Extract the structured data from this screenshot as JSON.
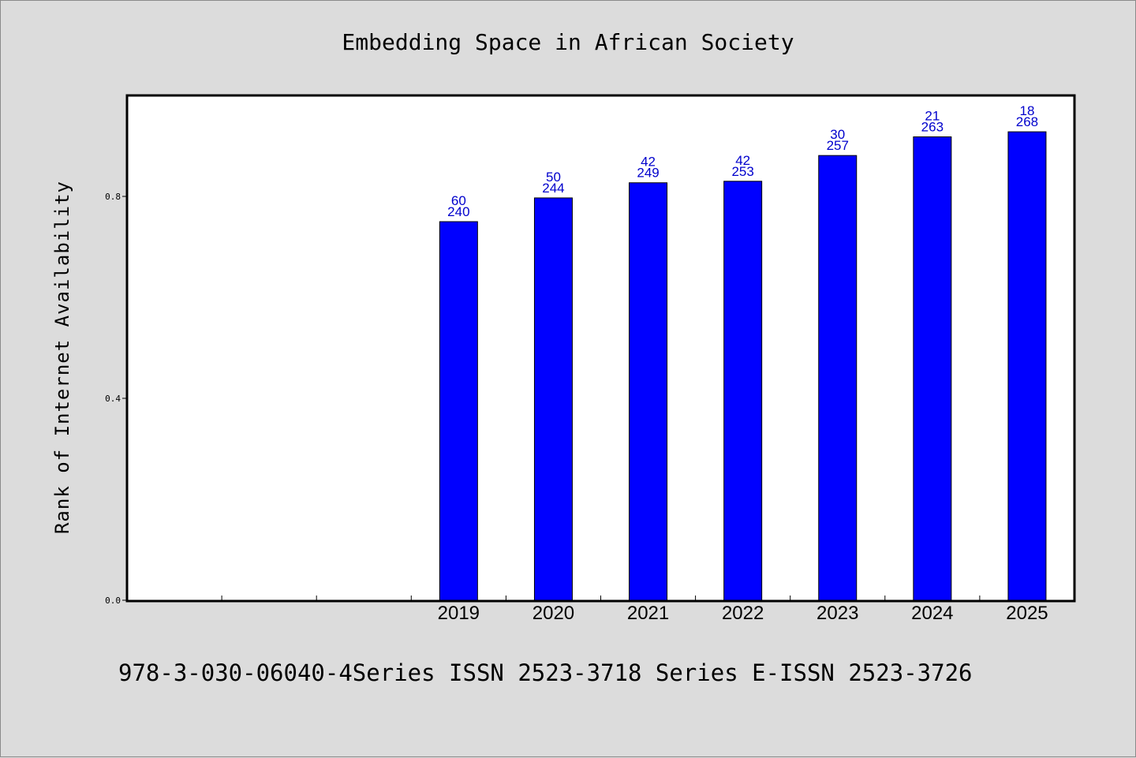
{
  "chart_data": {
    "type": "bar",
    "title": "Embedding Space in African Society",
    "ylabel": "Rank of Internet Availability",
    "xlabel": "",
    "slots": [
      "",
      "",
      "",
      "2019",
      "2020",
      "2021",
      "2022",
      "2023",
      "2024",
      "2025"
    ],
    "categories": [
      "2019",
      "2020",
      "2021",
      "2022",
      "2023",
      "2024",
      "2025"
    ],
    "values": [
      0.75,
      0.797,
      0.827,
      0.83,
      0.881,
      0.918,
      0.928
    ],
    "labels_top": [
      "60",
      "50",
      "42",
      "42",
      "30",
      "21",
      "18"
    ],
    "labels_bottom": [
      "240",
      "244",
      "249",
      "253",
      "257",
      "263",
      "268"
    ],
    "ylim": [
      0,
      1.0
    ],
    "yticks": [
      "0.0",
      "0.4",
      "0.8"
    ],
    "grid": false,
    "bar_color": "#0000ff",
    "label_color": "#0000cc"
  },
  "footer": {
    "text": "978-3-030-06040-4Series ISSN 2523-3718 Series E-ISSN 2523-3726"
  }
}
